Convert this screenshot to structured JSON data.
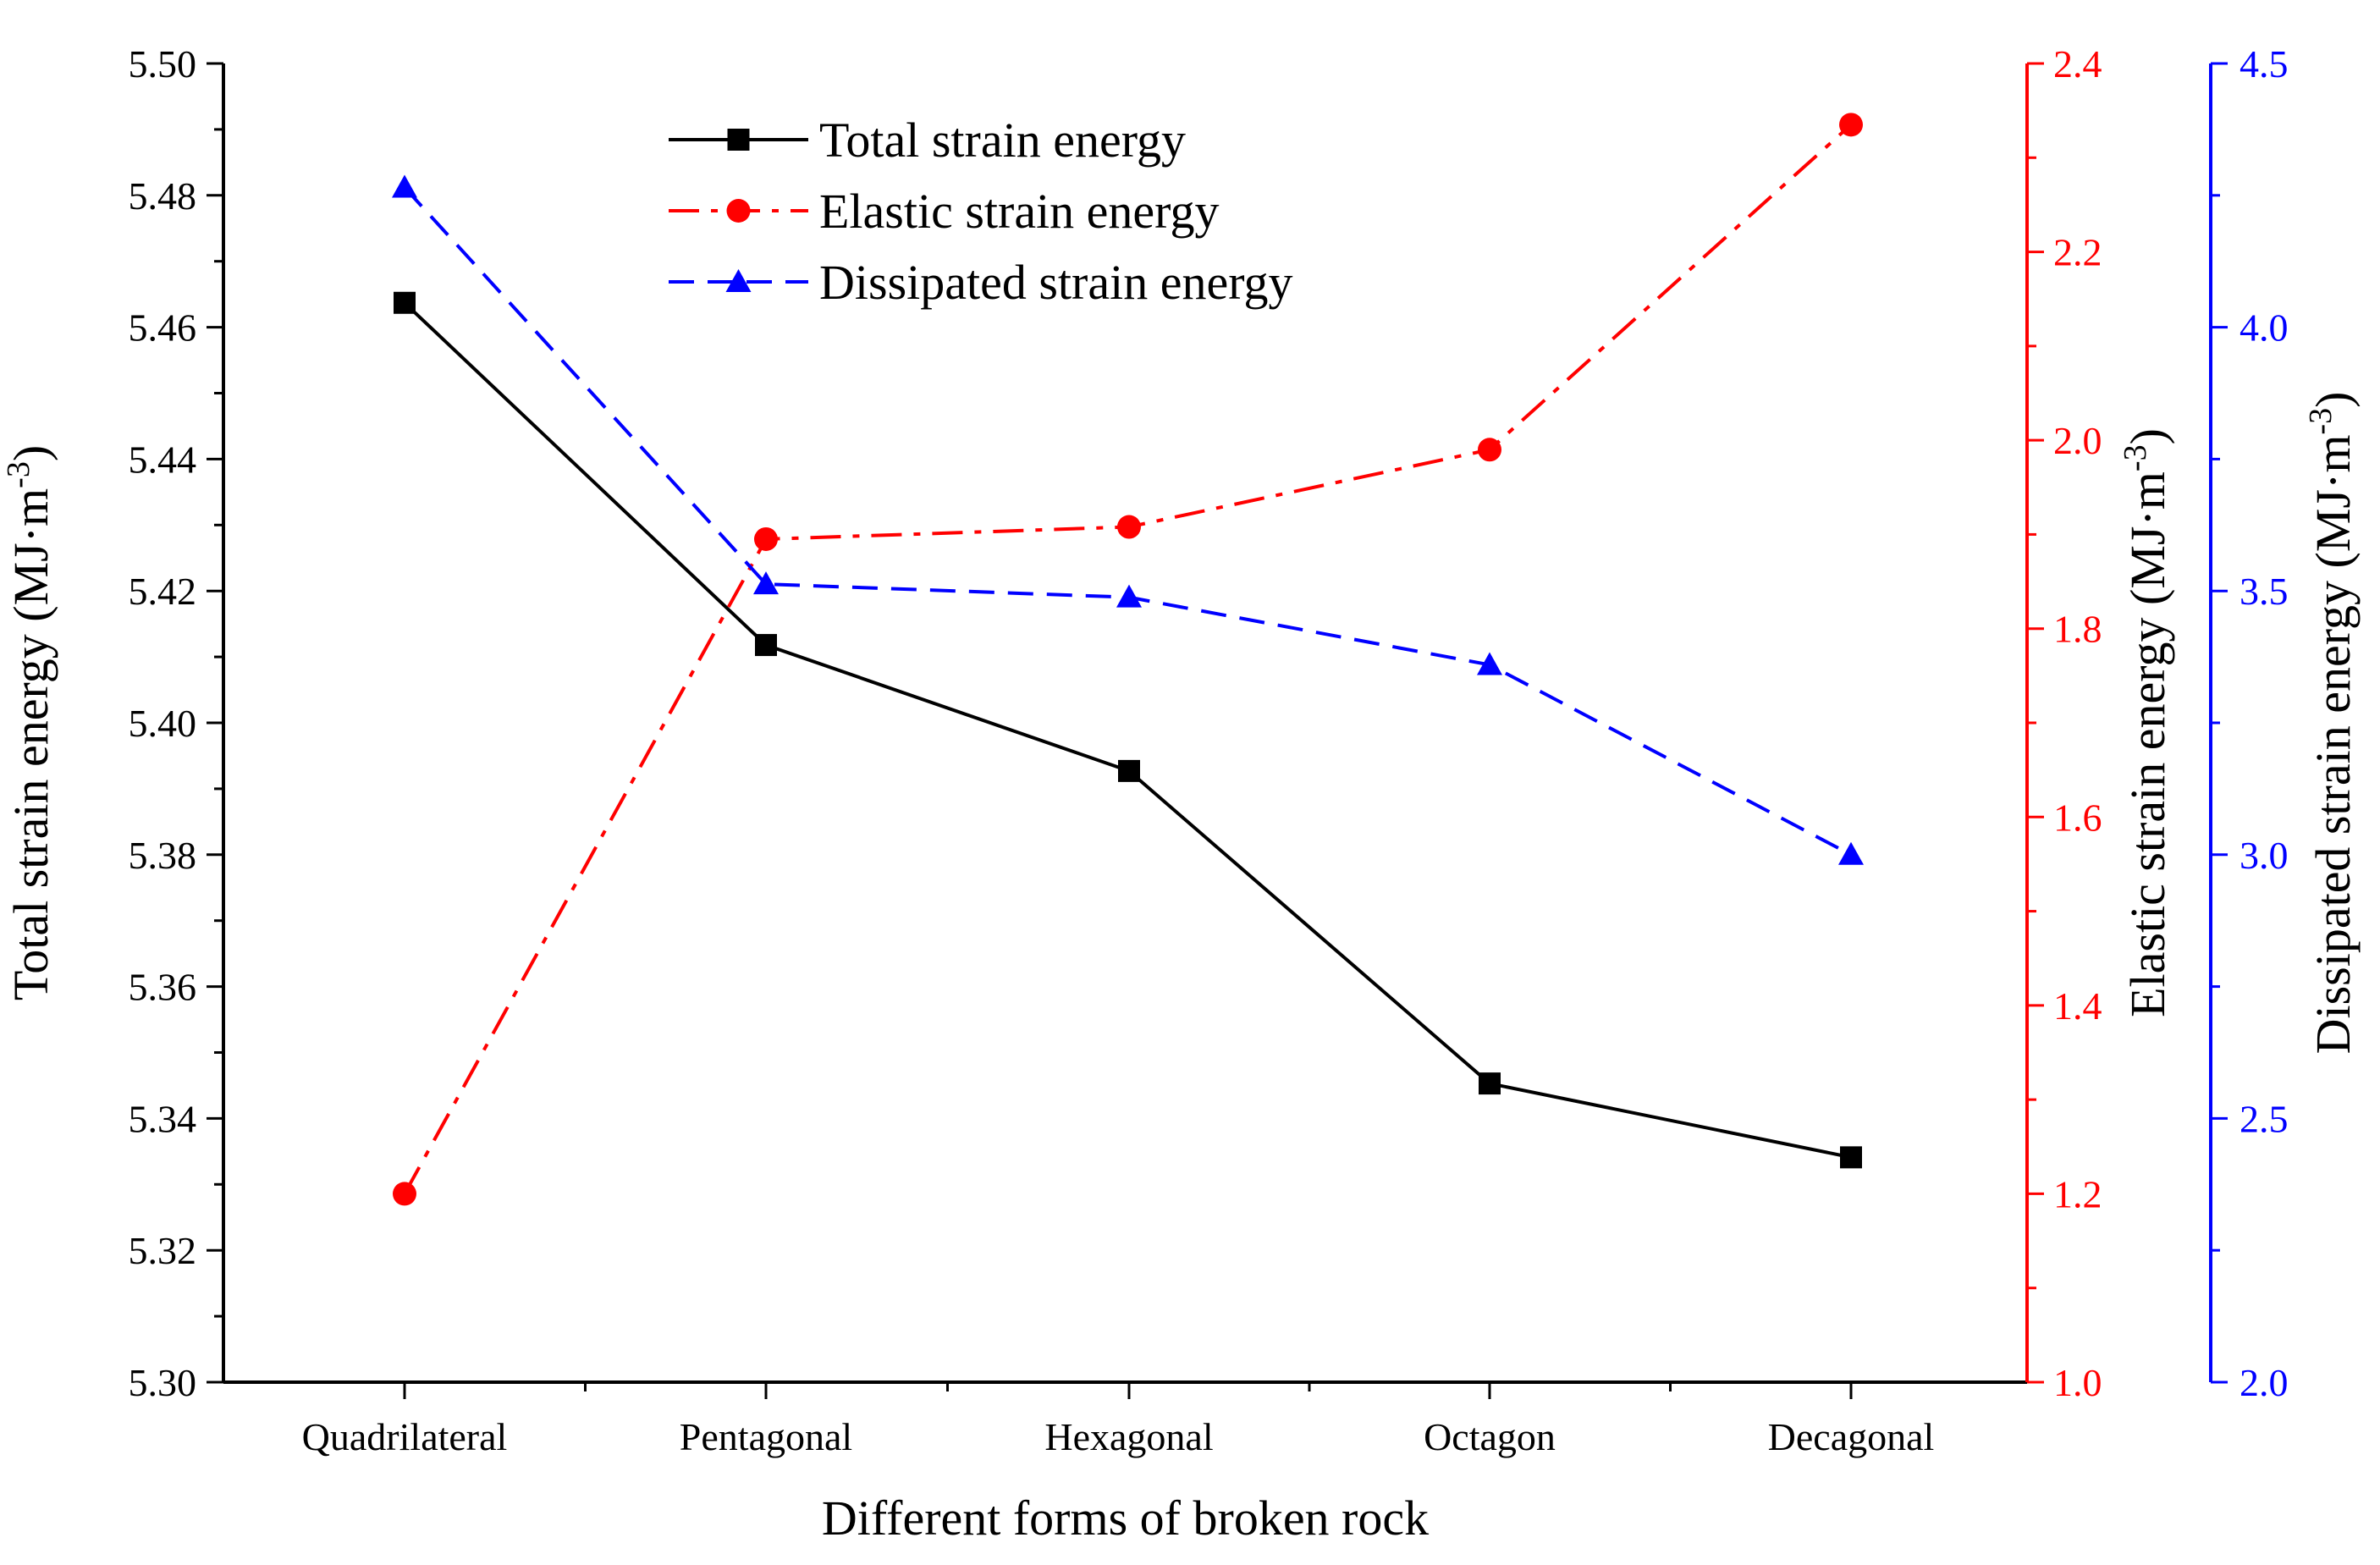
{
  "chart_data": {
    "type": "line",
    "title": "",
    "xlabel": "Different forms of broken rock",
    "categories": [
      "Quadrilateral",
      "Pentagonal",
      "Hexagonal",
      "Octagon",
      "Decagonal"
    ],
    "axes": {
      "left": {
        "label_main": "Total strain energy (MJ·m",
        "label_sup": "-3",
        "label_close": ")",
        "ylim": [
          5.3,
          5.5
        ],
        "ticks": [
          "5.30",
          "5.32",
          "5.34",
          "5.36",
          "5.38",
          "5.40",
          "5.42",
          "5.44",
          "5.46",
          "5.48",
          "5.50"
        ],
        "color": "#000000"
      },
      "right1": {
        "label_main": "Elastic strain energy (MJ·m",
        "label_sup": "-3",
        "label_close": ")",
        "ylim": [
          1.0,
          2.4
        ],
        "ticks": [
          "1.0",
          "1.2",
          "1.4",
          "1.6",
          "1.8",
          "2.0",
          "2.2",
          "2.4"
        ],
        "color": "#ff0000"
      },
      "right2": {
        "label_main": "Dissipated strain energy (MJ·m",
        "label_sup": "-3",
        "label_close": ")",
        "ylim": [
          2.0,
          4.5
        ],
        "ticks": [
          "2.0",
          "2.5",
          "3.0",
          "3.5",
          "4.0",
          "4.5"
        ],
        "color": "#0000ff"
      }
    },
    "series": [
      {
        "name": "Total strain energy",
        "axis": "left",
        "color": "#000000",
        "style": "solid",
        "marker": "square",
        "values": [
          5.4637,
          5.4118,
          5.3927,
          5.3453,
          5.3341
        ]
      },
      {
        "name": "Elastic strain energy",
        "axis": "right1",
        "color": "#ff0000",
        "style": "dash-dot",
        "marker": "circle",
        "values": [
          1.2,
          1.895,
          1.908,
          1.99,
          2.335
        ]
      },
      {
        "name": "Dissipated strain energy",
        "axis": "right2",
        "color": "#0000ff",
        "style": "dashed",
        "marker": "triangle",
        "values": [
          4.265,
          3.513,
          3.488,
          3.36,
          3.0
        ]
      }
    ],
    "legend": "top-center",
    "grid": false
  }
}
